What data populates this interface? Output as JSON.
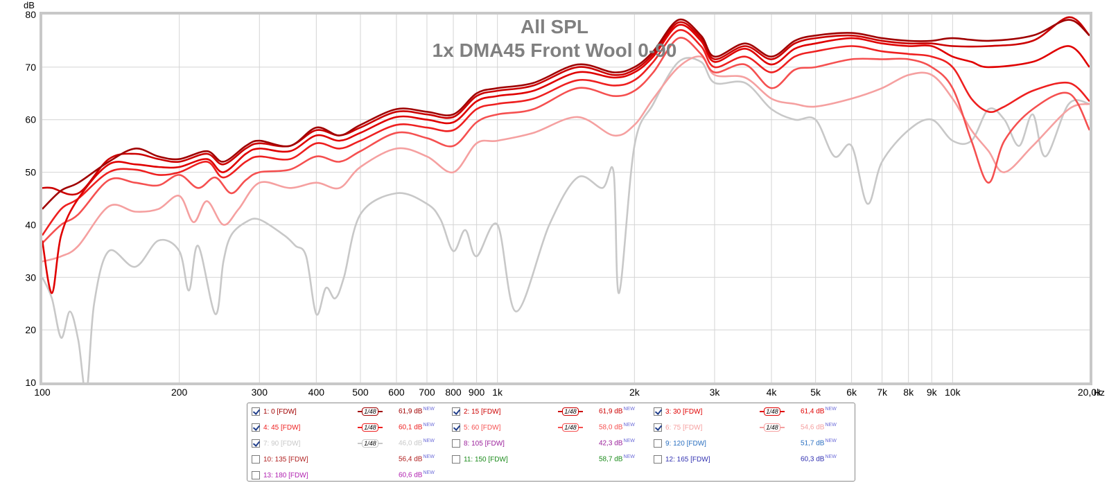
{
  "chart_data": {
    "type": "line",
    "title": "All SPL",
    "subtitle": "1x DMA45 Front Wool 0-90",
    "ylabel": "dB",
    "xlabel": "Hz",
    "x_scale": "log",
    "xlim": [
      100,
      20000
    ],
    "ylim": [
      10,
      80
    ],
    "grid": true,
    "x_ticks": [
      100,
      200,
      300,
      400,
      500,
      600,
      700,
      800,
      900,
      1000,
      2000,
      3000,
      4000,
      5000,
      6000,
      7000,
      8000,
      9000,
      10000,
      20000
    ],
    "x_tick_labels": [
      "100",
      "200",
      "300",
      "400",
      "500",
      "600",
      "700",
      "800",
      "900",
      "1k",
      "2k",
      "3k",
      "4k",
      "5k",
      "6k",
      "7k",
      "8k",
      "9k",
      "10k",
      "20,0k"
    ],
    "y_ticks": [
      10,
      20,
      30,
      40,
      50,
      60,
      70,
      80
    ],
    "series": [
      {
        "name": "1: 0 [FDW]",
        "color": "#a00000",
        "visible": true,
        "value_label": "61,9 dB",
        "x": [
          100,
          110,
          120,
          140,
          160,
          180,
          200,
          230,
          250,
          280,
          300,
          350,
          400,
          450,
          500,
          600,
          700,
          800,
          900,
          1000,
          1200,
          1500,
          1800,
          2000,
          2200,
          2500,
          2800,
          3000,
          3500,
          4000,
          4500,
          5000,
          6000,
          7000,
          8000,
          9000,
          10000,
          12000,
          15000,
          18000,
          20000
        ],
        "y": [
          43,
          46.5,
          48,
          52,
          54.5,
          53,
          52.5,
          54,
          52,
          55,
          56,
          55,
          58.5,
          57,
          59,
          62,
          61.5,
          61,
          65,
          66,
          67,
          70.5,
          69,
          70,
          73,
          79,
          76,
          72,
          74.5,
          72,
          75,
          76,
          76.5,
          75.5,
          75,
          75,
          75.5,
          75,
          76,
          79,
          76
        ]
      },
      {
        "name": "2: 15 [FDW]",
        "color": "#cc0000",
        "visible": true,
        "value_label": "61,9 dB",
        "x": [
          100,
          105,
          120,
          140,
          160,
          180,
          200,
          230,
          250,
          280,
          300,
          350,
          400,
          450,
          500,
          600,
          700,
          800,
          900,
          1000,
          1200,
          1500,
          1800,
          2000,
          2200,
          2500,
          2800,
          3000,
          3500,
          4000,
          4500,
          5000,
          6000,
          7000,
          8000,
          9000,
          10000,
          12000,
          15000,
          18000,
          20000
        ],
        "y": [
          47,
          47,
          46,
          52.5,
          53.5,
          52.5,
          52,
          53.5,
          51.5,
          54.5,
          55.5,
          55,
          58,
          57,
          58.5,
          61.5,
          61,
          60.5,
          64.5,
          65.5,
          66.5,
          70,
          68.5,
          69.5,
          72.5,
          78.5,
          75.5,
          71.5,
          74,
          71.5,
          74.5,
          75.5,
          76,
          75,
          74.5,
          74.5,
          74,
          74,
          75,
          79.5,
          76
        ]
      },
      {
        "name": "3: 30 [FDW]",
        "color": "#e00000",
        "visible": true,
        "value_label": "61,4 dB",
        "x": [
          100,
          105,
          110,
          120,
          140,
          160,
          180,
          200,
          230,
          250,
          280,
          300,
          350,
          400,
          450,
          500,
          600,
          700,
          800,
          900,
          1000,
          1200,
          1500,
          1800,
          2000,
          2200,
          2500,
          2800,
          3000,
          3500,
          4000,
          4500,
          5000,
          6000,
          7000,
          8000,
          9000,
          10000,
          11000,
          12000,
          15000,
          18000,
          20000
        ],
        "y": [
          37,
          27,
          38,
          45,
          51.5,
          51.5,
          51,
          51,
          52.5,
          50,
          53.5,
          54.5,
          54,
          57,
          56,
          57.5,
          60.5,
          60,
          59.5,
          63.5,
          64.5,
          65.5,
          69,
          68,
          69,
          72,
          78,
          75,
          71,
          73.5,
          70.5,
          73.5,
          74.5,
          75.5,
          74.5,
          74,
          74,
          72,
          71,
          70,
          71,
          74,
          70
        ]
      },
      {
        "name": "4: 45 [FDW]",
        "color": "#ee2020",
        "visible": true,
        "value_label": "60,1 dB",
        "x": [
          100,
          110,
          120,
          140,
          160,
          180,
          200,
          230,
          250,
          280,
          300,
          350,
          400,
          450,
          500,
          600,
          700,
          800,
          900,
          1000,
          1200,
          1500,
          1800,
          2000,
          2200,
          2500,
          2800,
          3000,
          3500,
          4000,
          4500,
          5000,
          6000,
          7000,
          8000,
          9000,
          10000,
          11000,
          12000,
          13000,
          15000,
          18000,
          20000
        ],
        "y": [
          38,
          43,
          45,
          50,
          50.5,
          49.5,
          50,
          52,
          49,
          52,
          53,
          52.5,
          55.5,
          54.5,
          56,
          59,
          58.5,
          58,
          62,
          63,
          64,
          67.5,
          66.5,
          67.5,
          71,
          77,
          74,
          70,
          72,
          69,
          72,
          73,
          74,
          73,
          72.5,
          72,
          70,
          64,
          61.5,
          62.5,
          65.5,
          67,
          63.5
        ]
      },
      {
        "name": "5: 60 [FDW]",
        "color": "#f55050",
        "visible": true,
        "value_label": "58,0 dB",
        "x": [
          100,
          110,
          120,
          140,
          160,
          180,
          200,
          220,
          240,
          260,
          280,
          300,
          350,
          400,
          450,
          500,
          600,
          700,
          800,
          900,
          1000,
          1200,
          1500,
          1800,
          2000,
          2200,
          2500,
          2800,
          3000,
          3500,
          4000,
          4500,
          5000,
          6000,
          7000,
          8000,
          9000,
          10000,
          11000,
          12000,
          13000,
          15000,
          18000,
          20000
        ],
        "y": [
          36.5,
          40,
          42,
          48.5,
          48,
          47.5,
          49.5,
          47,
          49,
          46,
          48.5,
          50,
          50.5,
          53,
          52,
          54,
          57.5,
          56.5,
          55,
          59.5,
          61,
          62,
          66,
          64.5,
          65.5,
          69,
          75.5,
          72.5,
          69,
          70.5,
          66,
          69.5,
          70,
          71.5,
          71.5,
          71.5,
          70,
          66,
          56,
          48,
          56,
          62,
          65,
          58
        ]
      },
      {
        "name": "6: 75 [FDW]",
        "color": "#f5a0a0",
        "visible": true,
        "value_label": "54,6 dB",
        "x": [
          100,
          110,
          120,
          140,
          160,
          180,
          200,
          215,
          230,
          250,
          270,
          300,
          350,
          400,
          450,
          500,
          600,
          700,
          800,
          900,
          1000,
          1200,
          1500,
          1800,
          2000,
          2200,
          2500,
          2800,
          3000,
          3500,
          4000,
          4500,
          5000,
          6000,
          7000,
          8000,
          9000,
          10000,
          11000,
          12000,
          13000,
          15000,
          18000,
          20000
        ],
        "y": [
          33,
          34,
          36,
          43.5,
          42.5,
          43,
          45.5,
          40.5,
          44.5,
          40,
          43,
          48,
          47,
          48,
          47,
          51,
          54.5,
          53,
          50,
          55.5,
          56,
          57.5,
          60.5,
          57,
          59,
          64,
          70,
          72,
          68.5,
          68,
          64,
          63,
          62.5,
          64,
          66,
          68.5,
          68.5,
          64,
          58,
          54,
          50,
          55,
          62,
          63
        ]
      },
      {
        "name": "7: 90 [FDW]",
        "color": "#c8c8c8",
        "visible": true,
        "value_label": "46,0 dB",
        "x": [
          100,
          105,
          110,
          115,
          120,
          125,
          130,
          140,
          160,
          180,
          200,
          210,
          220,
          240,
          250,
          260,
          280,
          300,
          340,
          360,
          380,
          400,
          420,
          440,
          460,
          500,
          600,
          700,
          750,
          800,
          850,
          900,
          1000,
          1100,
          1300,
          1500,
          1700,
          1800,
          1850,
          2000,
          2200,
          2500,
          2800,
          3000,
          3500,
          4000,
          4500,
          5000,
          5500,
          6000,
          6500,
          7000,
          8000,
          9000,
          10000,
          11000,
          12000,
          13000,
          14000,
          15000,
          16000,
          18000,
          20000
        ],
        "y": [
          30,
          26,
          18.5,
          23.5,
          18,
          8,
          25,
          35,
          32,
          37,
          35,
          27.5,
          36,
          23,
          33,
          38,
          40.5,
          41,
          38,
          36,
          34,
          23,
          28,
          26,
          30,
          42,
          46,
          44,
          41,
          35,
          39,
          34,
          40,
          23.5,
          40,
          49,
          47,
          50,
          27,
          55,
          63,
          71,
          71,
          67,
          67,
          62,
          60,
          60,
          53,
          55,
          44,
          52,
          58,
          60,
          56,
          56,
          62,
          60,
          55,
          61,
          53,
          63,
          63
        ]
      },
      {
        "name": "8: 105 [FDW]",
        "color": "#9a1f9a",
        "visible": false,
        "value_label": "42,3 dB"
      },
      {
        "name": "9: 120 [FDW]",
        "color": "#2a6fc0",
        "visible": false,
        "value_label": "51,7 dB"
      },
      {
        "name": "10: 135 [FDW]",
        "color": "#b02020",
        "visible": false,
        "value_label": "56,4 dB"
      },
      {
        "name": "11: 150 [FDW]",
        "color": "#1a8a1a",
        "visible": false,
        "value_label": "58,7 dB"
      },
      {
        "name": "12: 165 [FDW]",
        "color": "#3030b0",
        "visible": false,
        "value_label": "60,3 dB"
      },
      {
        "name": "13: 180 [FDW]",
        "color": "#b020b0",
        "visible": false,
        "value_label": "60,6 dB"
      }
    ]
  },
  "legend": {
    "smoothing_label": "1/48",
    "new_badge": "NEW"
  }
}
